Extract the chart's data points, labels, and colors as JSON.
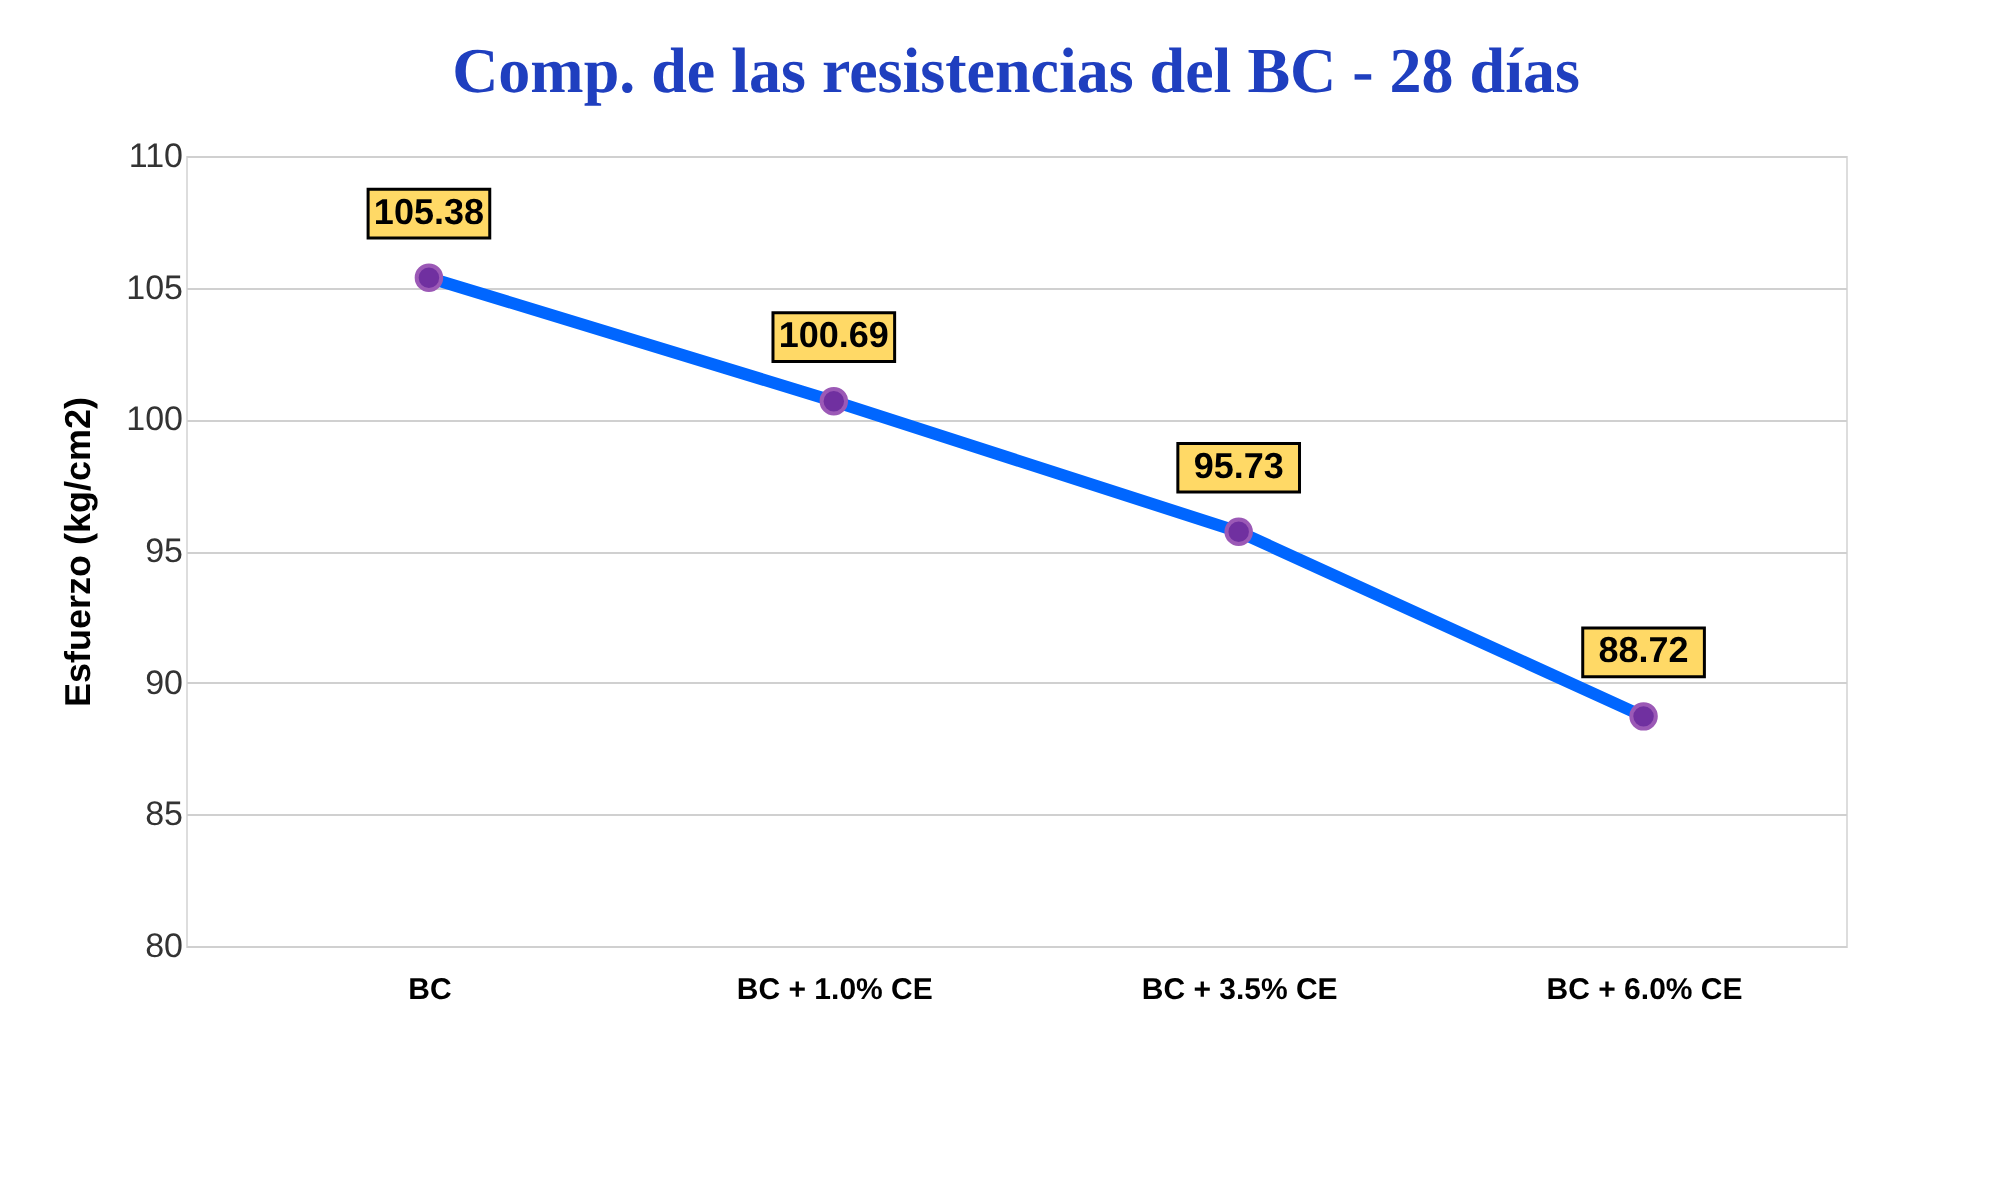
{
  "chart_data": {
    "type": "line",
    "title": "Comp. de las resistencias del BC - 28 días",
    "ylabel": "Esfuerzo (kg/cm2)",
    "categories": [
      "BC",
      "BC + 1.0% CE",
      "BC + 3.5% CE",
      "BC + 6.0% CE"
    ],
    "series": [
      {
        "color": "#0066ff",
        "values": [
          105.38,
          100.69,
          95.73,
          88.72
        ]
      }
    ],
    "marker": "circle",
    "ylim": [
      80,
      110
    ],
    "yticks": [
      80,
      85,
      90,
      95,
      100,
      105,
      110
    ],
    "grid": "y",
    "data_labels": true
  }
}
